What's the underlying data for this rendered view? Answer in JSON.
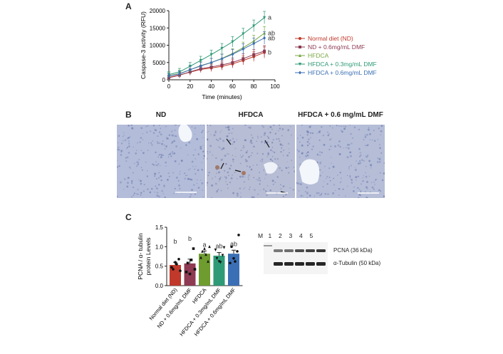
{
  "panels": {
    "a": "A",
    "b": "B",
    "c": "C"
  },
  "chart_data": [
    {
      "type": "line",
      "ylabel": "Caspase-3 activity (RFU)",
      "xlabel": "Time (minutes)",
      "xlim": [
        0,
        100
      ],
      "ylim": [
        0,
        20000
      ],
      "xticks": [
        "0",
        "20",
        "40",
        "60",
        "80",
        "100"
      ],
      "yticks": [
        "0",
        "5000",
        "10000",
        "15000",
        "20000"
      ],
      "x": [
        0,
        10,
        20,
        30,
        40,
        50,
        60,
        70,
        80,
        90
      ],
      "series": [
        {
          "name": "Normal diet (ND)",
          "color": "#c0392b",
          "marker": "circle",
          "values": [
            700,
            1400,
            2200,
            3000,
            3400,
            3900,
            4600,
            5600,
            6700,
            7900
          ],
          "letter": "b",
          "err": [
            700,
            800,
            900,
            900,
            1000,
            1100,
            1200,
            1300,
            1400,
            1600
          ]
        },
        {
          "name": "ND + 0.6mg/mL DMF",
          "color": "#8e3a52",
          "marker": "square",
          "values": [
            600,
            1300,
            2300,
            3200,
            3700,
            4300,
            5000,
            6100,
            7300,
            8300
          ],
          "letter": "",
          "err": [
            700,
            800,
            900,
            1000,
            1100,
            1200,
            1300,
            1400,
            1500,
            1600
          ]
        },
        {
          "name": "HFDCA",
          "color": "#7aa843",
          "marker": "triangle",
          "values": [
            1200,
            1800,
            2900,
            4100,
            5000,
            6200,
            7600,
            9300,
            11200,
            13500
          ],
          "letter": "ab",
          "err": [
            900,
            900,
            1000,
            1100,
            1200,
            1300,
            1400,
            1600,
            1700,
            1900
          ]
        },
        {
          "name": "HFDCA + 0.3mg/mL DMF",
          "color": "#2e9a76",
          "marker": "triangle-down",
          "values": [
            1500,
            2300,
            3900,
            5600,
            7300,
            9100,
            11000,
            13300,
            15600,
            18000
          ],
          "letter": "a",
          "err": [
            900,
            1000,
            1100,
            1200,
            1300,
            1400,
            1500,
            1600,
            1700,
            1800
          ]
        },
        {
          "name": "HFDCA + 0.6mg/mL DMF",
          "color": "#3b6fb5",
          "marker": "diamond",
          "values": [
            1100,
            1700,
            2900,
            4000,
            5000,
            6100,
            7400,
            8900,
            10500,
            12100
          ],
          "letter": "ab",
          "err": [
            800,
            900,
            1000,
            1100,
            1200,
            1300,
            1400,
            1500,
            1600,
            1800
          ]
        }
      ]
    },
    {
      "type": "bar",
      "ylabel": "PCNA / α- tubulin\nprotein Levels",
      "ylim": [
        0,
        1.5
      ],
      "yticks": [
        "0.0",
        "0.5",
        "1.0",
        "1.5"
      ],
      "categories": [
        "Normal diet (ND)",
        "ND + 0.6mg/mL DMF",
        "HFDCA",
        "HFDCA + 0.3mg/mL DMF",
        "HFDCA + 0.6mg/mL DMF"
      ],
      "values": [
        0.53,
        0.57,
        0.82,
        0.77,
        0.82
      ],
      "err": [
        0.07,
        0.11,
        0.07,
        0.08,
        0.09
      ],
      "letters": [
        "b",
        "b",
        "a",
        "ab",
        "ab"
      ],
      "colors": [
        "#c0392b",
        "#8e3a52",
        "#6e9c2f",
        "#2e9a76",
        "#3b6fb5"
      ],
      "points": [
        [
          0.47,
          0.6,
          0.68,
          0.42,
          0.55,
          0.38
        ],
        [
          0.35,
          0.3,
          0.95,
          0.58,
          0.66,
          0.42
        ],
        [
          0.72,
          0.95,
          0.62,
          0.88,
          0.8,
          1.0
        ],
        [
          0.92,
          0.62,
          0.78,
          0.7,
          0.6,
          0.98
        ],
        [
          0.58,
          0.7,
          0.88,
          1.0,
          0.62,
          1.3
        ]
      ]
    }
  ],
  "histology": {
    "titles": [
      "ND",
      "HFDCA",
      "HFDCA + 0.6 mg/mL DMF"
    ]
  },
  "western": {
    "lanes": [
      "M",
      "1",
      "2",
      "3",
      "4",
      "5"
    ],
    "bands": [
      "PCNA (36 kDa)",
      "α-Tubulin (50 kDa)"
    ],
    "pcna_intensity": [
      0.55,
      0.6,
      0.75,
      0.8,
      0.85
    ],
    "tubulin_intensity": [
      0.9,
      0.9,
      0.9,
      0.9,
      0.9
    ]
  }
}
